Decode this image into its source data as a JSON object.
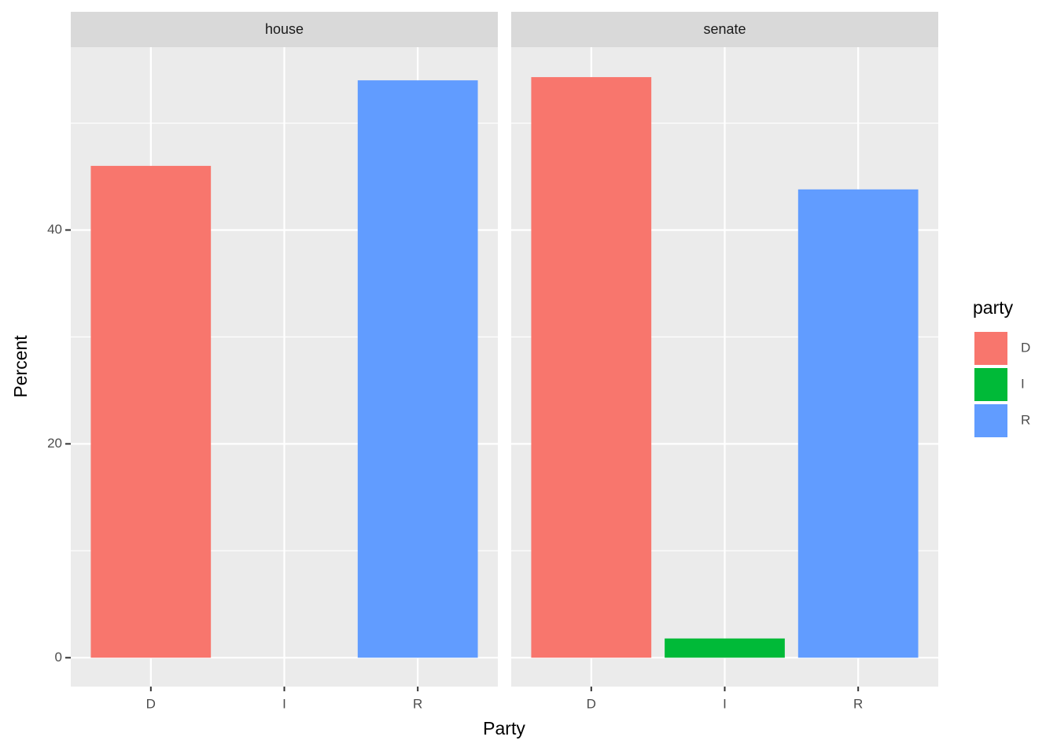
{
  "chart_data": [
    {
      "type": "bar",
      "title": "house",
      "categories": [
        "D",
        "I",
        "R"
      ],
      "values": [
        46.0,
        null,
        54.0
      ],
      "colors": [
        "#F8766D",
        "#00BA38",
        "#619CFF"
      ],
      "ylim": [
        -2.7,
        57.1
      ],
      "yticks": [
        0,
        20,
        40
      ],
      "minor_yticks": [
        10,
        30,
        50
      ],
      "grid": true
    },
    {
      "type": "bar",
      "title": "senate",
      "categories": [
        "D",
        "I",
        "R"
      ],
      "values": [
        54.3,
        1.8,
        43.8
      ],
      "colors": [
        "#F8766D",
        "#00BA38",
        "#619CFF"
      ],
      "ylim": [
        -2.7,
        57.1
      ],
      "yticks": [
        0,
        20,
        40
      ],
      "minor_yticks": [
        10,
        30,
        50
      ],
      "grid": true
    }
  ],
  "x_label": "Party",
  "y_label": "Percent",
  "legend": {
    "title": "party",
    "entries": [
      "D",
      "I",
      "R"
    ],
    "colors": [
      "#F8766D",
      "#00BA38",
      "#619CFF"
    ]
  }
}
